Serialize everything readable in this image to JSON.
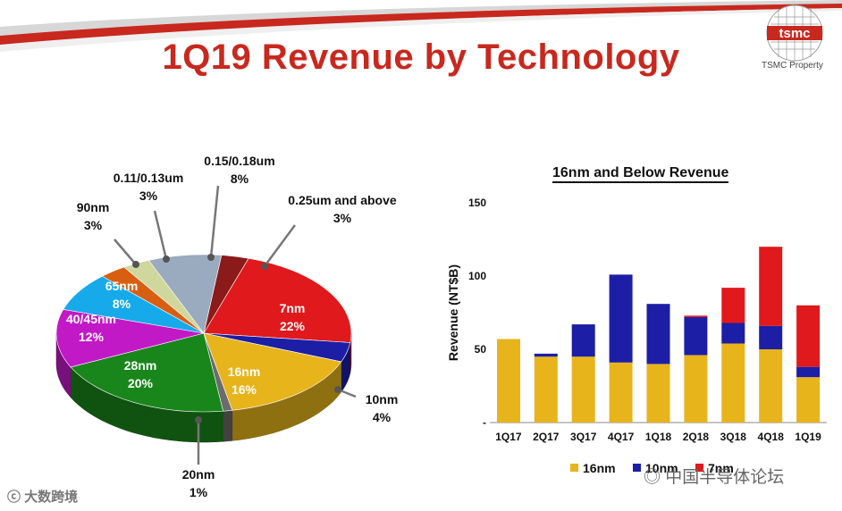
{
  "title": "1Q19 Revenue by Technology",
  "logo": {
    "brand": "tsmc",
    "caption": "TSMC Property"
  },
  "pie": {
    "type": "pie",
    "slices": [
      {
        "label": "0.25um and above",
        "pct": "3%",
        "value": 3,
        "color": "#8b1a1a"
      },
      {
        "label": "7nm",
        "pct": "22%",
        "value": 22,
        "color": "#e0191c"
      },
      {
        "label": "10nm",
        "pct": "4%",
        "value": 4,
        "color": "#1c1ea6"
      },
      {
        "label": "16nm",
        "pct": "16%",
        "value": 16,
        "color": "#e7b41c"
      },
      {
        "label": "20nm",
        "pct": "1%",
        "value": 1,
        "color": "#6b6b6b"
      },
      {
        "label": "28nm",
        "pct": "20%",
        "value": 20,
        "color": "#19861c"
      },
      {
        "label": "40/45nm",
        "pct": "12%",
        "value": 12,
        "color": "#c219c7"
      },
      {
        "label": "65nm",
        "pct": "8%",
        "value": 8,
        "color": "#16aaeb"
      },
      {
        "label": "90nm",
        "pct": "3%",
        "value": 3,
        "color": "#d85f12"
      },
      {
        "label": "0.11/0.13um",
        "pct": "3%",
        "value": 3,
        "color": "#cfd79d"
      },
      {
        "label": "0.15/0.18um",
        "pct": "8%",
        "value": 8,
        "color": "#9aaabf"
      }
    ]
  },
  "chart_data": {
    "type": "bar",
    "title": "16nm and Below Revenue",
    "ylabel": "Revenue (NT$B)",
    "xlabel": "",
    "ylim": [
      0,
      150
    ],
    "yticks": [
      "-",
      "50",
      "100",
      "150"
    ],
    "categories": [
      "1Q17",
      "2Q17",
      "3Q17",
      "4Q17",
      "1Q18",
      "2Q18",
      "3Q18",
      "4Q18",
      "1Q19"
    ],
    "series": [
      {
        "name": "16nm",
        "color": "#e7b41c",
        "values": [
          57,
          45,
          45,
          41,
          40,
          46,
          54,
          50,
          31
        ]
      },
      {
        "name": "10nm",
        "color": "#1c1ea6",
        "values": [
          0,
          2,
          22,
          60,
          41,
          26,
          14,
          16,
          7
        ]
      },
      {
        "name": "7nm",
        "color": "#e0191c",
        "values": [
          0,
          0,
          0,
          0,
          0,
          1,
          24,
          54,
          42
        ]
      }
    ],
    "legend": [
      "16nm",
      "10nm",
      "7nm"
    ]
  },
  "watermarks": {
    "left": "大数跨境",
    "right": "中国半导体论坛"
  }
}
